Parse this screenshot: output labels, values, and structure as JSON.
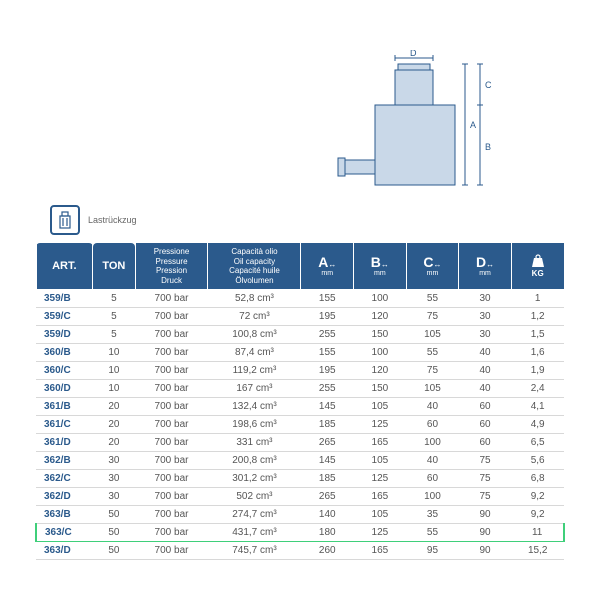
{
  "label": "Lastrückzug",
  "diagram": {
    "labels": {
      "A": "A",
      "B": "B",
      "C": "C",
      "D": "D"
    },
    "stroke": "#2b5a8c",
    "fill_light": "#c9d8e8"
  },
  "headers": {
    "art": "ART.",
    "ton": "TON",
    "pressure": [
      "Pressione",
      "Pressure",
      "Pression",
      "Druck"
    ],
    "capacity": [
      "Capacità olio",
      "Oil capacity",
      "Capacité huile",
      "Ölvolumen"
    ],
    "A": "A",
    "B": "B",
    "C": "C",
    "D": "D",
    "dim_unit": "mm",
    "kg": "KG"
  },
  "highlight_row_index": 13,
  "colors": {
    "header_bg": "#2b5a8c",
    "header_text": "#ffffff",
    "art_text": "#2b5a8c",
    "cell_text": "#555555",
    "row_border": "#d8d8d8",
    "highlight": "#3fcf7a"
  },
  "rows": [
    {
      "art": "359/B",
      "ton": "5",
      "press": "700 bar",
      "cap": "52,8 cm³",
      "A": "155",
      "B": "100",
      "C": "55",
      "D": "30",
      "kg": "1"
    },
    {
      "art": "359/C",
      "ton": "5",
      "press": "700 bar",
      "cap": "72 cm³",
      "A": "195",
      "B": "120",
      "C": "75",
      "D": "30",
      "kg": "1,2"
    },
    {
      "art": "359/D",
      "ton": "5",
      "press": "700 bar",
      "cap": "100,8 cm³",
      "A": "255",
      "B": "150",
      "C": "105",
      "D": "30",
      "kg": "1,5"
    },
    {
      "art": "360/B",
      "ton": "10",
      "press": "700 bar",
      "cap": "87,4 cm³",
      "A": "155",
      "B": "100",
      "C": "55",
      "D": "40",
      "kg": "1,6"
    },
    {
      "art": "360/C",
      "ton": "10",
      "press": "700 bar",
      "cap": "119,2 cm³",
      "A": "195",
      "B": "120",
      "C": "75",
      "D": "40",
      "kg": "1,9"
    },
    {
      "art": "360/D",
      "ton": "10",
      "press": "700 bar",
      "cap": "167 cm³",
      "A": "255",
      "B": "150",
      "C": "105",
      "D": "40",
      "kg": "2,4"
    },
    {
      "art": "361/B",
      "ton": "20",
      "press": "700 bar",
      "cap": "132,4 cm³",
      "A": "145",
      "B": "105",
      "C": "40",
      "D": "60",
      "kg": "4,1"
    },
    {
      "art": "361/C",
      "ton": "20",
      "press": "700 bar",
      "cap": "198,6 cm³",
      "A": "185",
      "B": "125",
      "C": "60",
      "D": "60",
      "kg": "4,9"
    },
    {
      "art": "361/D",
      "ton": "20",
      "press": "700 bar",
      "cap": "331 cm³",
      "A": "265",
      "B": "165",
      "C": "100",
      "D": "60",
      "kg": "6,5"
    },
    {
      "art": "362/B",
      "ton": "30",
      "press": "700 bar",
      "cap": "200,8 cm³",
      "A": "145",
      "B": "105",
      "C": "40",
      "D": "75",
      "kg": "5,6"
    },
    {
      "art": "362/C",
      "ton": "30",
      "press": "700 bar",
      "cap": "301,2 cm³",
      "A": "185",
      "B": "125",
      "C": "60",
      "D": "75",
      "kg": "6,8"
    },
    {
      "art": "362/D",
      "ton": "30",
      "press": "700 bar",
      "cap": "502 cm³",
      "A": "265",
      "B": "165",
      "C": "100",
      "D": "75",
      "kg": "9,2"
    },
    {
      "art": "363/B",
      "ton": "50",
      "press": "700 bar",
      "cap": "274,7 cm³",
      "A": "140",
      "B": "105",
      "C": "35",
      "D": "90",
      "kg": "9,2"
    },
    {
      "art": "363/C",
      "ton": "50",
      "press": "700 bar",
      "cap": "431,7 cm³",
      "A": "180",
      "B": "125",
      "C": "55",
      "D": "90",
      "kg": "11"
    },
    {
      "art": "363/D",
      "ton": "50",
      "press": "700 bar",
      "cap": "745,7 cm³",
      "A": "260",
      "B": "165",
      "C": "95",
      "D": "90",
      "kg": "15,2"
    }
  ]
}
